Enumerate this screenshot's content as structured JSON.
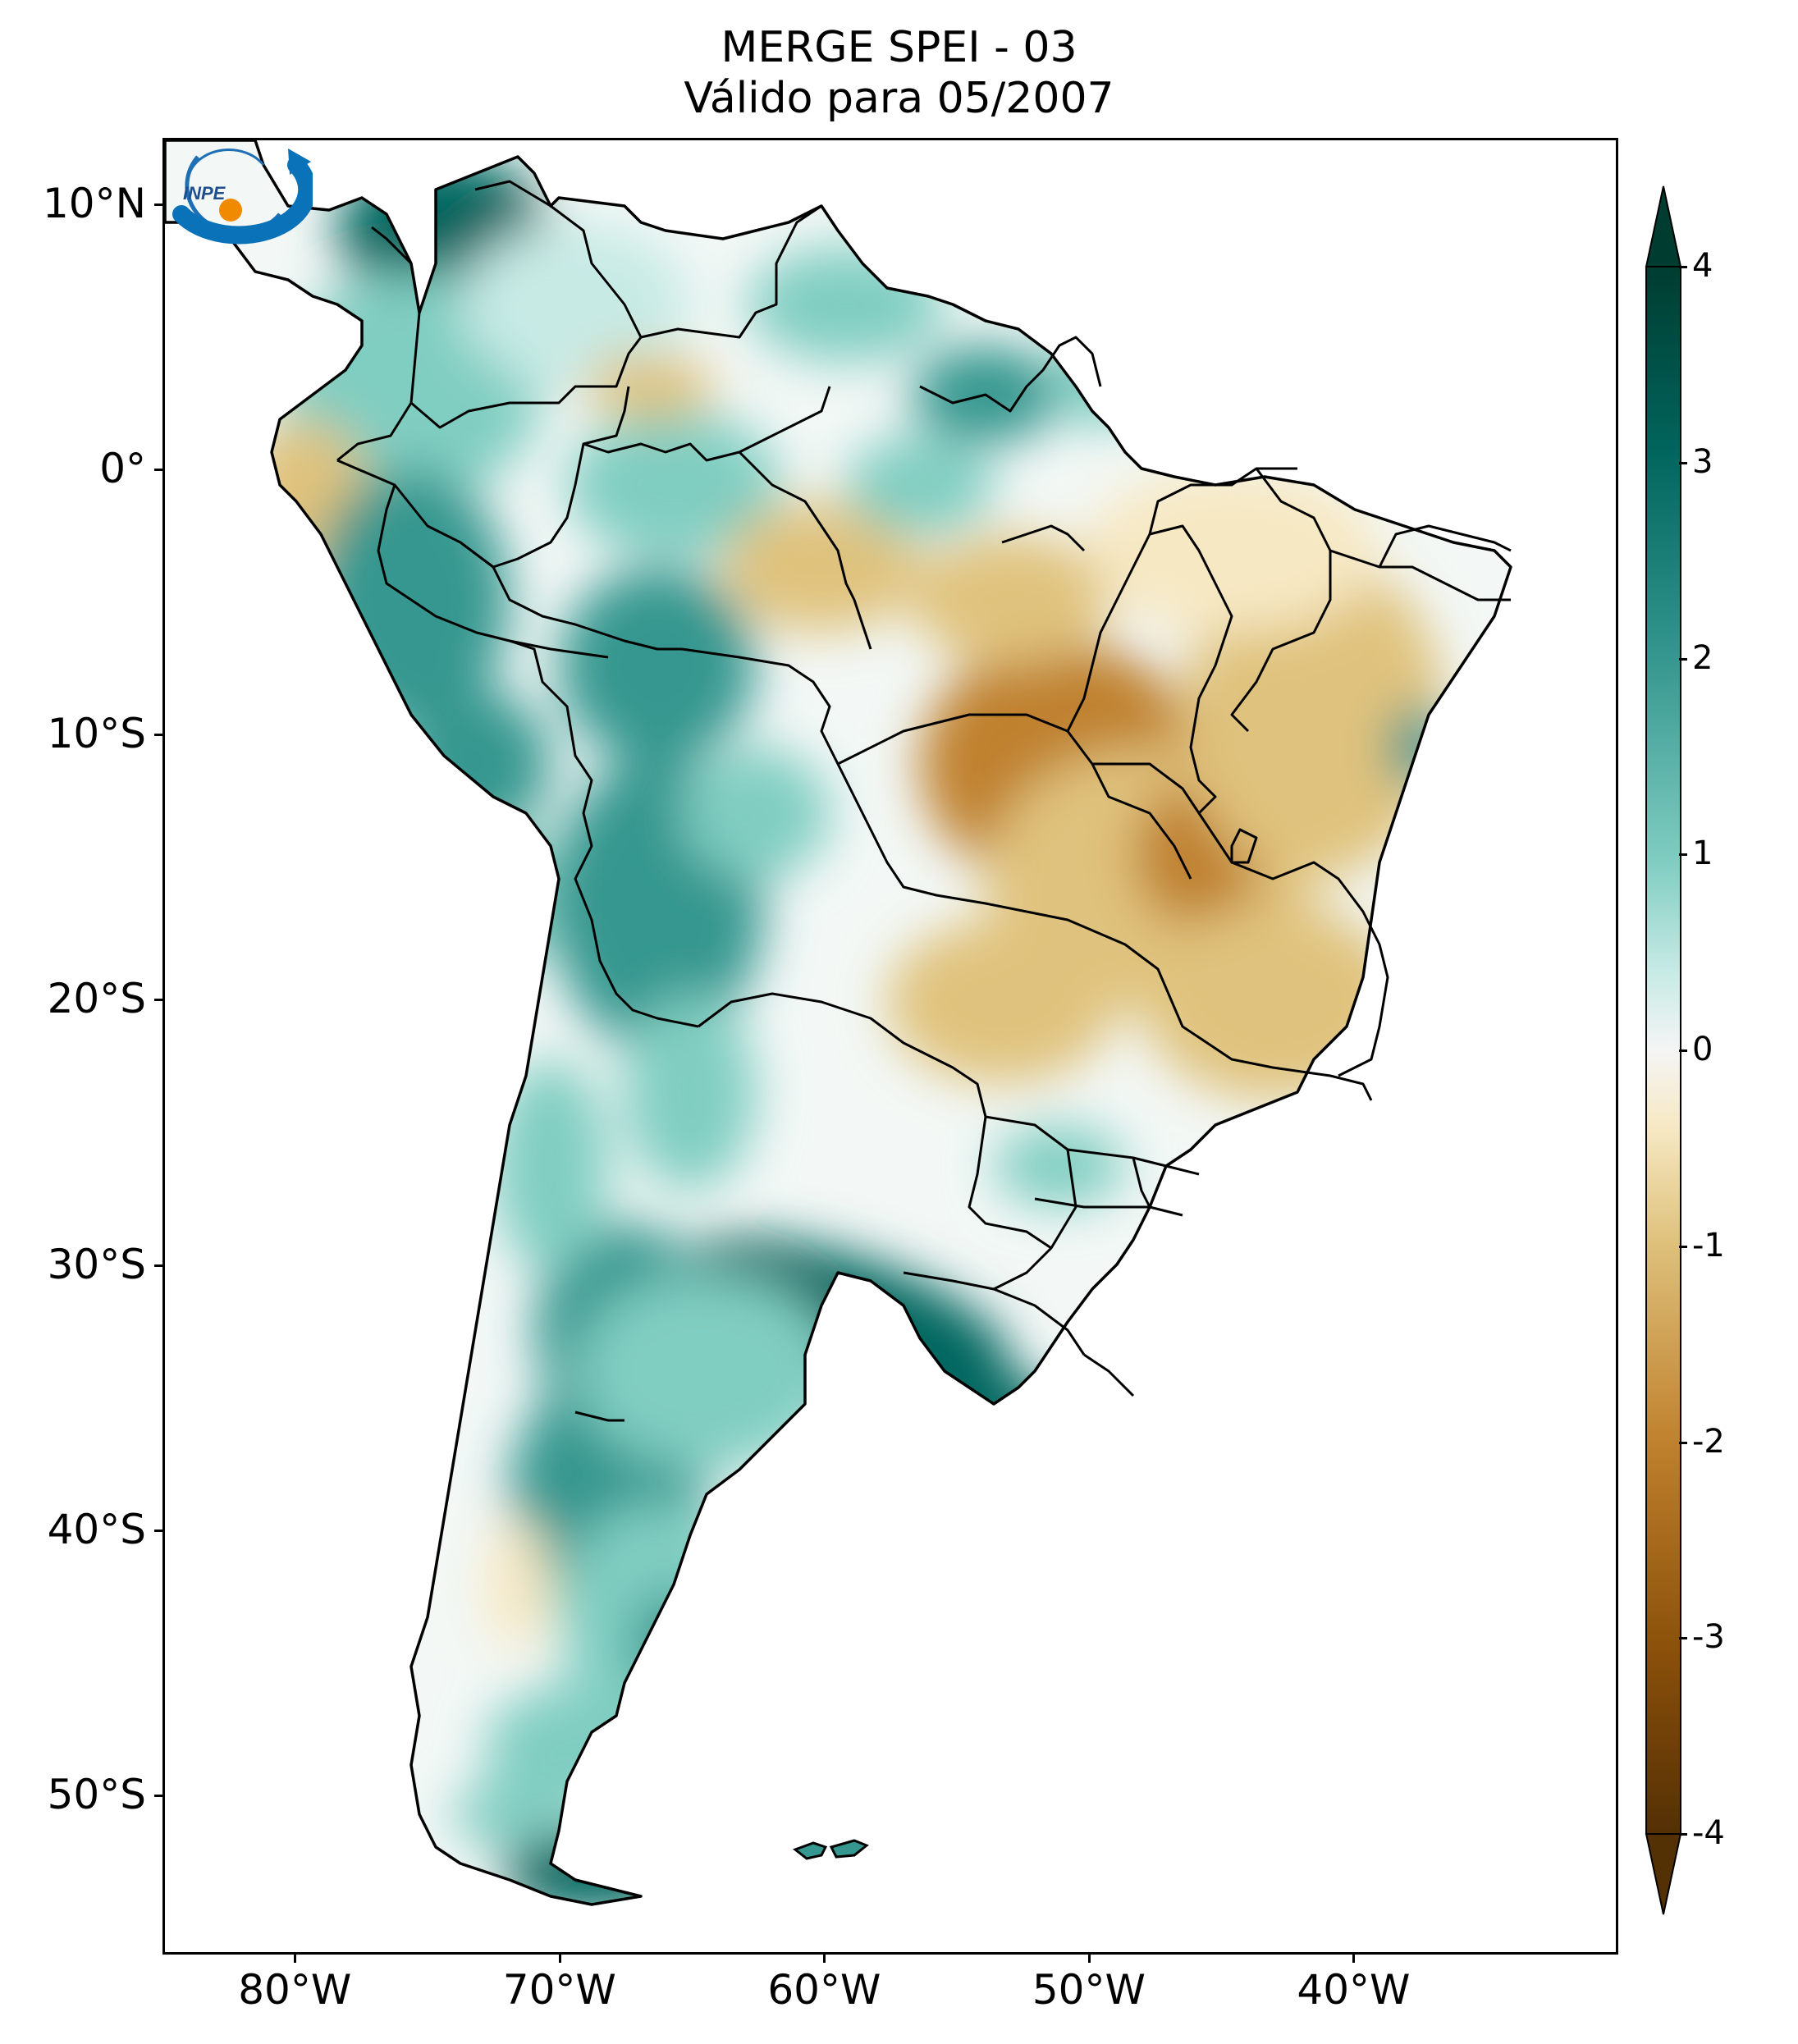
{
  "title": {
    "line1": "MERGE   SPEI - 03",
    "line2": "Válido para 05/2007"
  },
  "map": {
    "lon_range": [
      -85,
      -30
    ],
    "lat_range": [
      -56,
      12.5
    ],
    "y_ticks": [
      {
        "lat": 10,
        "label": "10°N"
      },
      {
        "lat": 0,
        "label": "0°"
      },
      {
        "lat": -10,
        "label": "10°S"
      },
      {
        "lat": -20,
        "label": "20°S"
      },
      {
        "lat": -30,
        "label": "30°S"
      },
      {
        "lat": -40,
        "label": "40°S"
      },
      {
        "lat": -50,
        "label": "50°S"
      }
    ],
    "x_ticks": [
      {
        "lon": -80,
        "label": "80°W"
      },
      {
        "lon": -70,
        "label": "70°W"
      },
      {
        "lon": -60,
        "label": "60°W"
      },
      {
        "lon": -50,
        "label": "50°W"
      },
      {
        "lon": -40,
        "label": "40°W"
      }
    ]
  },
  "colorbar": {
    "range": [
      -4,
      4
    ],
    "extend": "both",
    "ticks": [
      {
        "value": 4,
        "label": "4"
      },
      {
        "value": 3,
        "label": "3"
      },
      {
        "value": 2,
        "label": "2"
      },
      {
        "value": 1,
        "label": "1"
      },
      {
        "value": 0,
        "label": "0"
      },
      {
        "value": -1,
        "label": "-1"
      },
      {
        "value": -2,
        "label": "-2"
      },
      {
        "value": -3,
        "label": "-3"
      },
      {
        "value": -4,
        "label": "-4"
      }
    ],
    "colors": {
      "wet_strong": "#01665e",
      "wet_mid": "#35978f",
      "wet_light": "#80cdc1",
      "wet_pale": "#c7eae5",
      "neutral": "#f5f5f5",
      "dry_pale": "#f6e8c3",
      "dry_light": "#dfc27d",
      "dry_mid": "#bf812d",
      "dry_strong": "#8c510a",
      "dry_extreme": "#543005",
      "wet_extreme": "#003c30"
    }
  },
  "logo": {
    "text": "INPE"
  }
}
